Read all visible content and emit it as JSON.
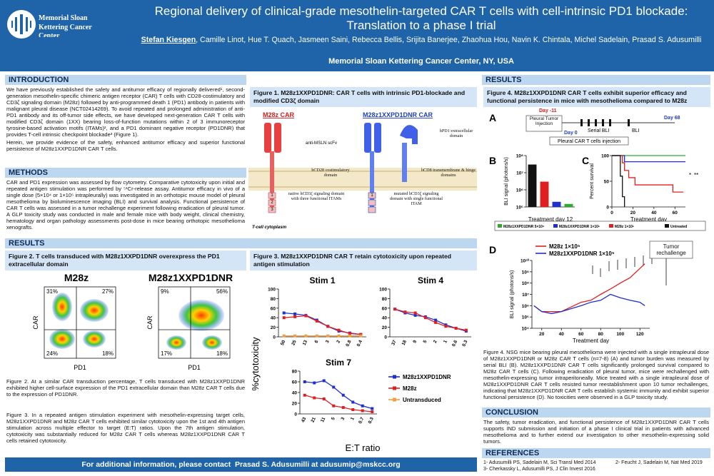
{
  "header": {
    "logo": "Memorial Sloan Kettering Cancer Center",
    "title": "Regional delivery of clinical-grade mesothelin-targeted CAR T cells with cell-intrinsic PD1 blockade: Translation to a phase I trial",
    "presenter": "Stefan Kiesgen",
    "authors": ", Camille Linot, Hue T. Quach, Jasmeen Saini, Rebecca Bellis, Srijita Banerjee, Zhaohua Hou, Navin K. Chintala, Michel Sadelain, Prasad S. Adusumilli",
    "institution": "Memorial Sloan Kettering Cancer Center, NY, USA"
  },
  "introduction": {
    "heading": "INTRODUCTION",
    "paragraphs": [
      "We have previously established the safety and antitumor efficacy of regionally delivered¹, second-generation mesothelin-specific chimeric antigen receptor (CAR) T cells with CD28-costimulatory and CD3ζ signaling domain (M28z) followed by anti-programmed death 1 (PD1) antibody in patients with malignant pleural disease (NCT02414269). To avoid repeated and prolonged administration of anti-PD1 antibody and its off-tumor side effects, we have developed next-generation CAR T cells with modified CD3ζ domain (1XX) bearing loss-of-function mutations within 2 of 3 immunoreceptor tyrosine-based activation motifs (ITAMs)², and a PD1 dominant negative receptor (PD1DNR) that provides T-cell intrinsic checkpoint blockade³ (Figure 1).",
      "Herein, we provide evidence of the safety, enhanced antitumor efficacy and superior functional persistence of M28z1XXPD1DNR CAR T cells."
    ]
  },
  "methods": {
    "heading": "METHODS",
    "text": "CAR and PD1 expression was assessed by flow cytometry. Comparative cytotoxicity upon initial and repeated antigen stimulation was performed by ⁵¹Cr-release assay. Antitumor efficacy in vivo of a single dose (5×10⁴ or 1×10⁵ intrapleurally) was investigated in an orthotopic mouse model of pleural mesothelioma by bioluminescence imaging (BLI) and survival analysis. Functional persistence of CAR T cells was assessed in a tumor rechallenge experiment following eradication of pleural tumor. A GLP toxicity study was conducted in male and female mice with body weight, clinical chemistry, hematology and organ pathology assessments post-dose in mice bearing orthotopic mesothelioma xenografts."
  },
  "results_heading": "RESULTS",
  "figure1": {
    "title": "Figure 1. M28z1XXPD1DNR: CAR T cells with intrinsic PD1-blockade and modified CD3ζ domain",
    "left_name": "M28z CAR",
    "right_name": "M28z1XXPD1DNR CAR",
    "labels": [
      "anti-MSLN scFv",
      "hPD1 extracellular domain",
      "hCD28 costimulatory domain",
      "hCD8 transmembrane & hinge domains",
      "native hCD3ζ signaling domain with three functional ITAMs",
      "mutated hCD3ζ signaling domain with single functional ITAM",
      "T-cell cytoplasm"
    ],
    "itams": [
      "1",
      "2",
      "3"
    ]
  },
  "figure2": {
    "title": "Figure 2. T cells transduced with M28z1XXPD1DNR overexpress the PD1 extracellular domain",
    "y_label": "CAR",
    "x_label": "PD1",
    "panels": [
      {
        "title": "M28z",
        "quadrants": [
          "31%",
          "27%",
          "24%",
          "18%"
        ]
      },
      {
        "title": "M28z1XXPD1DNR",
        "quadrants": [
          "9%",
          "56%",
          "17%",
          "18%"
        ]
      }
    ],
    "caption": "Figure 2. At a similar CAR transduction percentage, T cells transduced with M28z1XXPD1DNR exhibited higher cell-surface expression of the PD1 extracellular domain than M28z CAR T cells due to the expression of PD1DNR."
  },
  "figure3": {
    "title": "Figure 3. M28z1XXPD1DNR CAR T retain cytotoxicity upon repeated antigen stimulation",
    "y_label": "%cytotoxicity",
    "x_label": "E:T ratio",
    "legend": [
      {
        "name": "M28z1XXPD1DNR",
        "color": "#1f2fd0"
      },
      {
        "name": "M28z",
        "color": "#e02020"
      },
      {
        "name": "Untransduced",
        "color": "#f0a040"
      }
    ],
    "charts": [
      {
        "type": "line",
        "title": "Stim 1",
        "categories": [
          "50",
          "25",
          "13",
          "6",
          "3",
          "2",
          "0.8",
          "0.4"
        ],
        "ylim": [
          0,
          100
        ],
        "yticks": [
          0,
          20,
          40,
          60,
          80,
          100
        ],
        "series": [
          {
            "values": [
              50,
              48,
              45,
              35,
              22,
              12,
              8,
              5
            ]
          },
          {
            "values": [
              40,
              42,
              44,
              33,
              22,
              14,
              7,
              5
            ]
          },
          {
            "values": [
              2,
              2,
              2,
              2,
              2,
              2,
              2,
              2
            ]
          }
        ]
      },
      {
        "type": "line",
        "title": "Stim 4",
        "categories": [
          "37",
          "18",
          "9",
          "5",
          "2",
          "1",
          "0.6",
          "0.3"
        ],
        "ylim": [
          0,
          100
        ],
        "yticks": [
          0,
          20,
          40,
          60,
          80,
          100
        ],
        "series": [
          {
            "values": [
              58,
              50,
              45,
              42,
              35,
              25,
              18,
              12
            ]
          },
          {
            "values": [
              58,
              52,
              50,
              40,
              30,
              22,
              18,
              14
            ]
          }
        ]
      },
      {
        "type": "line",
        "title": "Stim 7",
        "categories": [
          "43",
          "21",
          "11",
          "5",
          "3",
          "1",
          "0.7",
          "0.3"
        ],
        "ylim": [
          0,
          80
        ],
        "yticks": [
          0,
          20,
          40,
          60,
          80
        ],
        "series": [
          {
            "values": [
              60,
              58,
              62,
              50,
              35,
              22,
              15,
              10
            ]
          },
          {
            "values": [
              35,
              30,
              28,
              15,
              12,
              8,
              6,
              4
            ]
          }
        ]
      }
    ],
    "caption": "Figure 3. In a repeated antigen stimulation experiment with mesothelin-expressing target cells, M28z1XXPD1DNR and M28z CAR T cells exhibited similar cytotoxicity upon the 1st and 4th antigen stimulation across multiple effector to target (E:T) ratios. Upon the 7th antigen stimulation, cytotoxicity was substantially reduced for M28z CAR T cells whereas M28z1XXPD1DNR CAR T cells retained cytotoxicity."
  },
  "figure4": {
    "heading": "RESULTS",
    "title": "Figure 4. M28z1XXPD1DNR CAR T cells exhibit superior efficacy and functional persistence in mice with mesothelioma compared to M28z",
    "panel_letters": [
      "A",
      "B",
      "C",
      "D"
    ],
    "timeline": {
      "day_start": "Day -11",
      "tumor": "Pleural Tumor Injection",
      "day0": "Day 0",
      "serial": "Serial BLI",
      "bli": "BLI",
      "day_end": "Day 68",
      "cart": "Pleural CAR T cells injection"
    },
    "legend": [
      {
        "name": "M28z1XXPD1DNR 5×10⁴",
        "color": "#2eaa2e"
      },
      {
        "name": "M28z1XXPD1DNR 1×10⁵",
        "color": "#1f2fd0"
      },
      {
        "name": "M28z 1×10⁵",
        "color": "#e02020"
      },
      {
        "name": "Untreated",
        "color": "#111111"
      }
    ],
    "bli": {
      "type": "bar",
      "log": true,
      "y_label": "BLI signal (photons/s)",
      "x_label": "Treatment day 12",
      "ylim": [
        100000,
        100000000
      ],
      "yticks": [
        {
          "value": 100000,
          "label": "10⁵"
        },
        {
          "value": 1000000,
          "label": "10⁶"
        },
        {
          "value": 10000000,
          "label": "10⁷"
        },
        {
          "value": 100000000,
          "label": "10⁸"
        }
      ],
      "values": [
        30000000,
        3000000,
        200000,
        150000
      ],
      "colors": [
        "#111111",
        "#e02020",
        "#1f2fd0",
        "#2eaa2e"
      ]
    },
    "survival": {
      "type": "step",
      "y_label": "Percent survival",
      "x_label": "Treatment day",
      "xlim": [
        0,
        70
      ],
      "xticks": [
        0,
        20,
        40,
        60
      ],
      "ylim": [
        0,
        100
      ],
      "yticks": [
        0,
        50,
        100
      ],
      "series": [
        {
          "color": "#2eaa2e",
          "x": [
            0,
            70
          ],
          "values": [
            100,
            100
          ]
        },
        {
          "color": "#1f2fd0",
          "x": [
            0,
            12,
            70
          ],
          "values": [
            100,
            88,
            88
          ]
        },
        {
          "color": "#e02020",
          "x": [
            0,
            10,
            12,
            16,
            22,
            45,
            58,
            68
          ],
          "values": [
            100,
            86,
            71,
            57,
            43,
            43,
            29,
            29
          ]
        },
        {
          "color": "#111111",
          "x": [
            0,
            8,
            10,
            12
          ],
          "values": [
            100,
            60,
            20,
            0
          ]
        }
      ],
      "annotations": [
        "*",
        "**"
      ]
    },
    "rechallenge": {
      "type": "line",
      "log": true,
      "y_label": "BLI signal (photons/s)",
      "x_label": "Treatment day",
      "xlim": [
        10,
        130
      ],
      "xticks": [
        20,
        40,
        60,
        80,
        100,
        120
      ],
      "ylim": [
        10000,
        10000000000
      ],
      "yticks": [
        {
          "value": 10000,
          "label": "10⁴"
        },
        {
          "value": 100000,
          "label": "10⁵"
        },
        {
          "value": 1000000,
          "label": "10⁶"
        },
        {
          "value": 10000000,
          "label": "10⁷"
        },
        {
          "value": 100000000,
          "label": "10⁸"
        },
        {
          "value": 1000000000,
          "label": "10⁹"
        },
        {
          "value": 10000000000,
          "label": "10¹⁰"
        }
      ],
      "annotation": "Tumor rechallenge",
      "series": [
        {
          "name": "M28z 1×10⁵",
          "color": "#e02020",
          "x": [
            12,
            20,
            30,
            40,
            60,
            70,
            80,
            90,
            100,
            110,
            120,
            125
          ],
          "values": [
            1000000,
            300000,
            300000,
            300000,
            2000000,
            3000000,
            10000000,
            30000000,
            100000000,
            300000000,
            2000000000,
            5000000000
          ]
        },
        {
          "name": "M28z1XXPD1DNR 1×10⁵",
          "color": "#1f2fd0",
          "x": [
            12,
            20,
            30,
            40,
            60,
            70,
            80,
            90,
            100,
            110,
            120,
            125
          ],
          "values": [
            1000000,
            300000,
            200000,
            300000,
            1000000,
            2000000,
            3000000,
            10000000,
            5000000,
            3000000,
            2000000,
            1000000
          ]
        }
      ]
    },
    "caption": "Figure 4. NSG mice bearing pleural mesothelioma were injected with a single intrapleural dose of M28z1XXPD1DNR or M28z CAR T cells (n=7-8) (A) and tumor burden was measured by serial BLI (B). M28z1XXPD1DNR CAR T cells significantly prolonged survival compared to M28z CAR T cells (C). Following eradication of pleural tumor, mice were rechallenged with mesothelin-expressing tumor intraperitoneally. Mice treated with a single intrapleural dose of M28z1XXPD1DNR CAR T cells resisted tumor reestablishment upon 10 tumor rechallenges, indicating that M28z1XXPD1DNR CAR T cells establish systemic immunity and exhibit superior functional persistence (D). No toxicities were observed in a GLP toxicity study."
  },
  "conclusion": {
    "heading": "CONCLUSION",
    "text": "The safety, tumor eradication, and functional persistence of M28z1XXPD1DNR CAR T cells supports IND submission and initiation of a phase I clinical trial in patients with advanced mesothelioma and to further extend our investigation to other mesothelin-expressing solid tumors."
  },
  "references": {
    "heading": "REFERENCES",
    "items": [
      "1- Adusumilli PS, Sadelain M, Sci Transl Med 2014",
      "2- Feucht J, Sadelain M, Nat Med 2019",
      "3- Cherkassky L, Adusumilli PS, J Clin Invest 2016"
    ]
  },
  "footer": "For additional information, please contact  Prasad S. Adusumilli at adusumip@mskcc.org"
}
